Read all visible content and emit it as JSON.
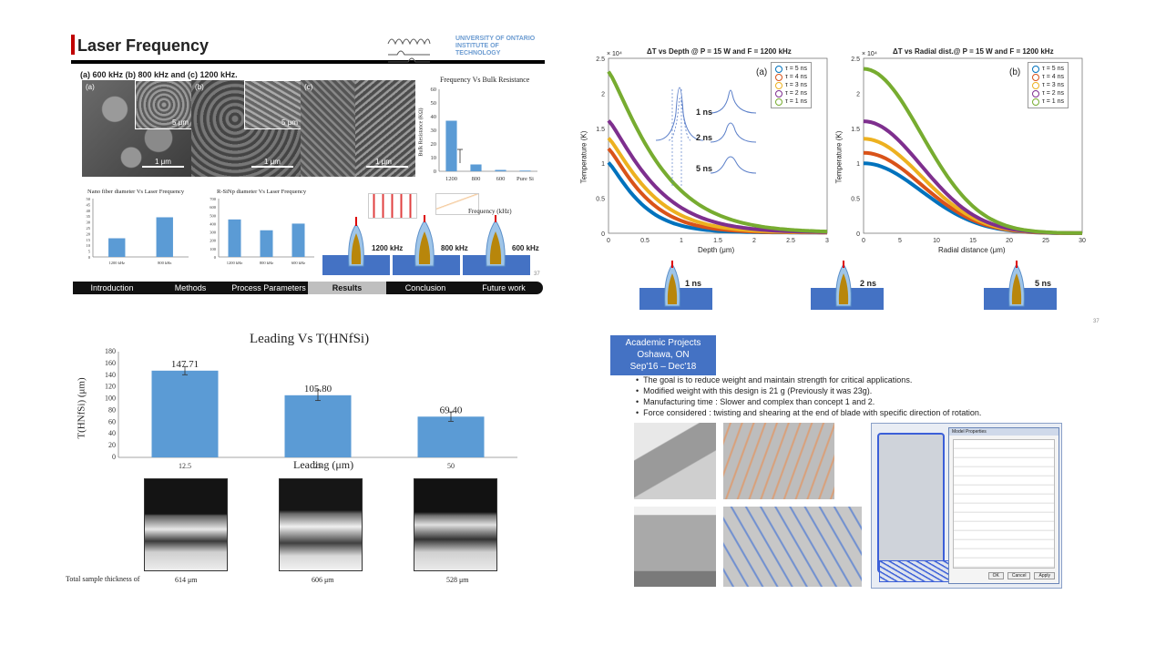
{
  "top_left": {
    "title": "Laser Frequency",
    "subtitle": "(a) 600 kHz (b) 800 kHz and (c) 1200 kHz.",
    "university_logo": "UNIVERSITY OF ONTARIO INSTITUTE OF TECHNOLOGY",
    "sem_labels": [
      "(a)",
      "(b)",
      "(c)"
    ],
    "sem_scale": [
      "1 μm",
      "1 μm",
      "1 μm"
    ],
    "inset_scale": [
      "5 μm",
      "5 μm"
    ],
    "bulk_chart": {
      "title": "Frequency Vs Bulk Resistance",
      "ylabel": "Bulk Resistance (KΩ)",
      "xlabel": "Frequency (kHz)",
      "yticks": [
        "0",
        "10",
        "20",
        "30",
        "40",
        "50",
        "60"
      ]
    },
    "nano_chart": {
      "title": "Nano fiber diameter Vs Laser Frequency",
      "ylabel": "Diameter (nm)",
      "xlabel": "Frequency (kHz)",
      "yticks": [
        "0",
        "5",
        "10",
        "15",
        "20",
        "25",
        "30",
        "35",
        "40",
        "45",
        "50"
      ]
    },
    "rsinp_chart": {
      "title": "R-SiNp diameter Vs Laser Frequency",
      "ylabel": "Diameter (nm)",
      "xlabel": "Frequency (kHz)",
      "yticks": [
        "0",
        "100",
        "200",
        "300",
        "400",
        "500",
        "600",
        "700"
      ]
    },
    "laser_labels": [
      "1200 kHz",
      "800 kHz",
      "600 kHz"
    ],
    "page_number": "37",
    "nav": [
      "Introduction",
      "Methods",
      "Process Parameters",
      "Results",
      "Conclusion",
      "Future work"
    ],
    "nav_active": "Results"
  },
  "top_right": {
    "chart_a": {
      "title": "ΔT vs Depth @ P = 15 W and F = 1200 kHz",
      "ylabel": "Temperature (K)",
      "xlabel": "Depth (μm)",
      "tag": "(a)",
      "exponent": "× 10⁴"
    },
    "chart_b": {
      "title": "ΔT vs Radial dist.@ P = 15 W and F = 1200 kHz",
      "ylabel": "Temperature (K)",
      "xlabel": "Radial distance (μm)",
      "tag": "(b)",
      "exponent": "× 10⁴"
    },
    "legend": [
      "τ = 5 ns",
      "τ = 4 ns",
      "τ = 3 ns",
      "τ = 2 ns",
      "τ = 1 ns"
    ],
    "legend_colors": [
      "#0072bd",
      "#d95319",
      "#edb120",
      "#7e2f8e",
      "#77ac30"
    ],
    "pulse_labels": [
      "1 ns",
      "2 ns",
      "5 ns"
    ],
    "diagram_labels": [
      "1 ns",
      "2 ns",
      "5 ns"
    ],
    "yticks": [
      "0",
      "0.5",
      "1",
      "1.5",
      "2",
      "2.5"
    ],
    "xticks_a": [
      "0",
      "0.5",
      "1",
      "1.5",
      "2",
      "2.5",
      "3"
    ],
    "xticks_b": [
      "0",
      "5",
      "10",
      "15",
      "20",
      "25",
      "30"
    ],
    "page_number": "37"
  },
  "bottom_left": {
    "footer_text": "Total sample thickness of",
    "thickness_labels": [
      "614 μm",
      "606 μm",
      "528 μm"
    ]
  },
  "bottom_right": {
    "header": {
      "line1": "Academic Projects",
      "line2": "Oshawa, ON",
      "line3": "Sep'16 – Dec'18"
    },
    "bullets": [
      "The goal is to reduce weight  and maintain strength for critical applications.",
      "Modified weight with this design is 21 g (Previously it was 23g).",
      "Manufacturing time : Slower and complex than concept 1 and 2.",
      "Force considered : twisting and shearing at the end of blade with specific direction of rotation."
    ],
    "dialog_title": "Model Properties",
    "dialog_buttons": [
      "OK",
      "Cancel",
      "Apply"
    ]
  },
  "chart_data": [
    {
      "type": "bar",
      "title": "Leading Vs T(HNfSi)",
      "xlabel": "Leading (μm)",
      "ylabel": "T(HNfSi) (μm)",
      "categories": [
        "12.5",
        "25",
        "50"
      ],
      "values": [
        147.71,
        105.8,
        69.4
      ],
      "data_labels": [
        "147.71",
        "105.80",
        "69.40"
      ],
      "errors": [
        7,
        9,
        8
      ],
      "ylim": [
        0,
        180
      ],
      "yticks": [
        "0",
        "20",
        "40",
        "60",
        "80",
        "100",
        "120",
        "140",
        "160",
        "180"
      ],
      "color": "#5b9bd5"
    },
    {
      "type": "bar",
      "title": "Frequency Vs Bulk Resistance",
      "categories": [
        "1200",
        "800",
        "600",
        "Pure Si"
      ],
      "values": [
        37,
        5,
        1,
        0.5
      ],
      "ylim": [
        0,
        60
      ]
    },
    {
      "type": "bar",
      "title": "Nano fiber diameter Vs Laser Frequency",
      "categories": [
        "1200 kHz",
        "800 kHz"
      ],
      "values": [
        16,
        34
      ],
      "ylim": [
        0,
        50
      ]
    },
    {
      "type": "bar",
      "title": "R-SiNp diameter Vs Laser Frequency",
      "categories": [
        "1200 kHz",
        "800 kHz",
        "600 kHz"
      ],
      "values": [
        450,
        320,
        400
      ],
      "ylim": [
        0,
        700
      ]
    }
  ]
}
